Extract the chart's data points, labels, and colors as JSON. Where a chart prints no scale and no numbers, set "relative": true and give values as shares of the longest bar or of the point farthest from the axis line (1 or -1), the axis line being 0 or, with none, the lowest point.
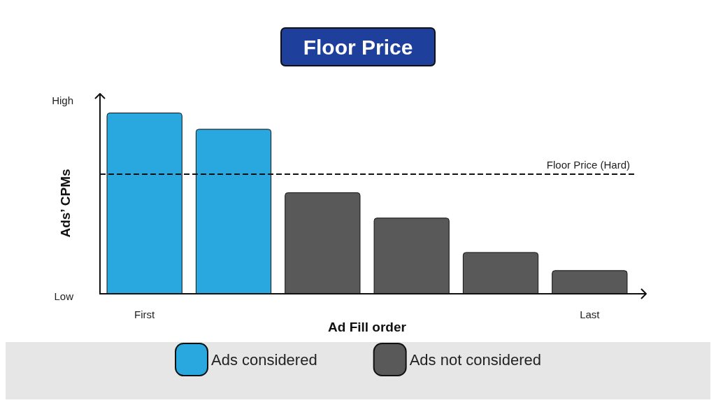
{
  "chart_data": {
    "type": "bar",
    "title": "Floor Price",
    "xlabel": "Ad Fill order",
    "ylabel": "Ads’ CPMs",
    "relative": true,
    "stacked": true,
    "categories": [
      "First",
      null,
      null,
      null,
      null,
      "Last"
    ],
    "series": [
      {
        "name": "Ads considered",
        "color": "#29a8e0",
        "values": [
          1,
          0.91,
          null,
          null,
          null,
          null
        ]
      },
      {
        "name": "Ads not considered",
        "color": "#595959",
        "values": [
          null,
          null,
          0.56,
          0.42,
          0.23,
          0.13
        ]
      }
    ],
    "ref_lines": [
      {
        "axis": "y",
        "value": 0.66,
        "label": "Floor Price (Hard)",
        "line_style": "dashed"
      }
    ],
    "annotations": [
      "High",
      "Low"
    ],
    "grid": false,
    "legend": "bottom"
  }
}
